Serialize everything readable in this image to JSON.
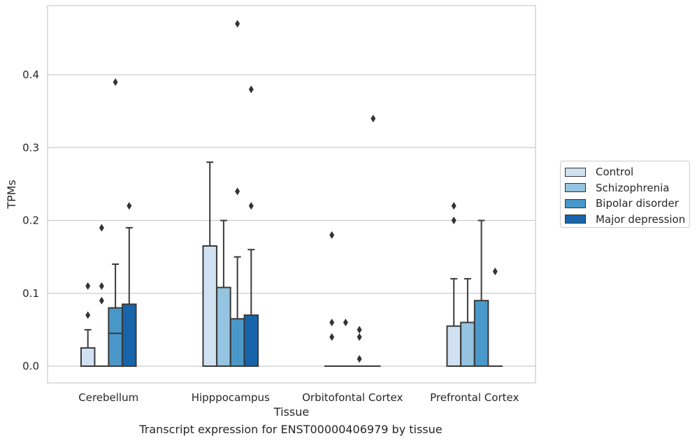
{
  "caption": "Transcript expression for ENST00000406979 by tissue",
  "chart_data": {
    "type": "box",
    "xlabel": "Tissue",
    "ylabel": "TPMs",
    "ylim": [
      -0.023,
      0.495
    ],
    "yticks": [
      0.0,
      0.1,
      0.2,
      0.3,
      0.4
    ],
    "ytick_labels": [
      "0.0",
      "0.1",
      "0.2",
      "0.3",
      "0.4"
    ],
    "grid": "y",
    "legend_placement": "right",
    "categories": [
      "Cerebellum",
      "Hipppocampus",
      "Orbitofontal Cortex",
      "Prefrontal Cortex"
    ],
    "series": [
      {
        "name": "Control",
        "color": "#d0e1f2",
        "boxes": [
          {
            "q1": 0.0,
            "median": 0.0,
            "q3": 0.025,
            "whisker_low": 0.0,
            "whisker_high": 0.05,
            "outliers": [
              0.11,
              0.07
            ]
          },
          {
            "q1": 0.0,
            "median": 0.0,
            "q3": 0.165,
            "whisker_low": 0.0,
            "whisker_high": 0.28,
            "outliers": []
          },
          {
            "q1": 0.0,
            "median": 0.0,
            "q3": 0.0,
            "whisker_low": 0.0,
            "whisker_high": 0.0,
            "outliers": [
              0.18,
              0.06,
              0.04
            ]
          },
          {
            "q1": 0.0,
            "median": 0.0,
            "q3": 0.055,
            "whisker_low": 0.0,
            "whisker_high": 0.12,
            "outliers": [
              0.22,
              0.2
            ]
          }
        ]
      },
      {
        "name": "Schizophrenia",
        "color": "#94c4df",
        "boxes": [
          {
            "q1": 0.0,
            "median": 0.0,
            "q3": 0.0,
            "whisker_low": 0.0,
            "whisker_high": 0.0,
            "outliers": [
              0.19,
              0.11,
              0.09
            ]
          },
          {
            "q1": 0.0,
            "median": 0.0,
            "q3": 0.108,
            "whisker_low": 0.0,
            "whisker_high": 0.2,
            "outliers": []
          },
          {
            "q1": 0.0,
            "median": 0.0,
            "q3": 0.0,
            "whisker_low": 0.0,
            "whisker_high": 0.0,
            "outliers": [
              0.06
            ]
          },
          {
            "q1": 0.0,
            "median": 0.0,
            "q3": 0.06,
            "whisker_low": 0.0,
            "whisker_high": 0.12,
            "outliers": []
          }
        ]
      },
      {
        "name": "Bipolar disorder",
        "color": "#4a98c9",
        "boxes": [
          {
            "q1": 0.0,
            "median": 0.045,
            "q3": 0.08,
            "whisker_low": 0.0,
            "whisker_high": 0.14,
            "outliers": [
              0.39
            ]
          },
          {
            "q1": 0.0,
            "median": 0.0,
            "q3": 0.065,
            "whisker_low": 0.0,
            "whisker_high": 0.15,
            "outliers": [
              0.47,
              0.24
            ]
          },
          {
            "q1": 0.0,
            "median": 0.0,
            "q3": 0.0,
            "whisker_low": 0.0,
            "whisker_high": 0.0,
            "outliers": [
              0.05,
              0.04,
              0.01
            ]
          },
          {
            "q1": 0.0,
            "median": 0.0,
            "q3": 0.09,
            "whisker_low": 0.0,
            "whisker_high": 0.2,
            "outliers": []
          }
        ]
      },
      {
        "name": "Major depression",
        "color": "#1764ab",
        "boxes": [
          {
            "q1": 0.0,
            "median": 0.0,
            "q3": 0.085,
            "whisker_low": 0.0,
            "whisker_high": 0.19,
            "outliers": [
              0.22
            ]
          },
          {
            "q1": 0.0,
            "median": 0.0,
            "q3": 0.07,
            "whisker_low": 0.0,
            "whisker_high": 0.16,
            "outliers": [
              0.38,
              0.22
            ]
          },
          {
            "q1": 0.0,
            "median": 0.0,
            "q3": 0.0,
            "whisker_low": 0.0,
            "whisker_high": 0.0,
            "outliers": [
              0.34
            ]
          },
          {
            "q1": 0.0,
            "median": 0.0,
            "q3": 0.0,
            "whisker_low": 0.0,
            "whisker_high": 0.0,
            "outliers": [
              0.13
            ]
          }
        ]
      }
    ]
  }
}
